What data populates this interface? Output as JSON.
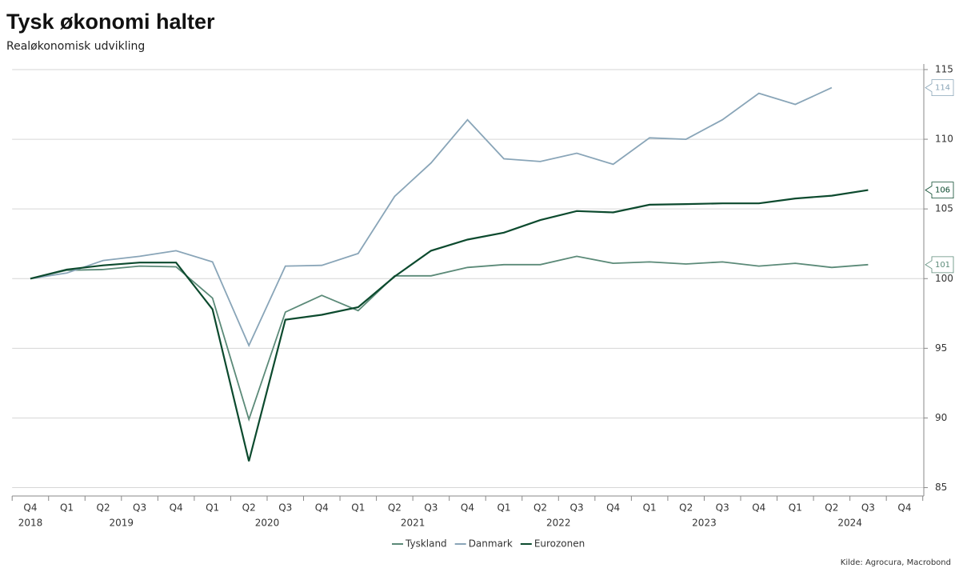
{
  "chart_data": {
    "type": "line",
    "title": "Tysk økonomi halter",
    "subtitle": "Realøkonomisk udvikling",
    "source": "Kilde: Agrocura, Macrobond",
    "categories": [
      "Q4",
      "Q1",
      "Q2",
      "Q3",
      "Q4",
      "Q1",
      "Q2",
      "Q3",
      "Q4",
      "Q1",
      "Q2",
      "Q3",
      "Q4",
      "Q1",
      "Q2",
      "Q3",
      "Q4",
      "Q1",
      "Q2",
      "Q3",
      "Q4",
      "Q1",
      "Q2",
      "Q3",
      "Q4"
    ],
    "years": [
      "2018",
      "2019",
      "2020",
      "2021",
      "2022",
      "2023",
      "2024"
    ],
    "series": [
      {
        "name": "Tyskland",
        "color": "#5b8a78",
        "end_label": "101",
        "values": [
          100,
          100.6,
          100.65,
          100.9,
          100.85,
          98.6,
          89.9,
          97.6,
          98.8,
          97.7,
          100.2,
          100.2,
          100.8,
          101.0,
          101.0,
          101.6,
          101.1,
          101.2,
          101.05,
          101.2,
          100.9,
          101.1,
          100.8,
          101.0,
          null
        ]
      },
      {
        "name": "Danmark",
        "color": "#89a5b8",
        "end_label": "114",
        "values": [
          100,
          100.4,
          101.3,
          101.6,
          102.0,
          101.2,
          95.2,
          100.9,
          100.95,
          101.8,
          105.9,
          108.3,
          111.4,
          108.6,
          108.4,
          109.0,
          108.2,
          110.1,
          110.0,
          111.4,
          113.3,
          112.5,
          113.7,
          null,
          null
        ]
      },
      {
        "name": "Eurozonen",
        "color": "#0c4a2e",
        "end_label": "106",
        "values": [
          100,
          100.65,
          100.95,
          101.15,
          101.15,
          97.8,
          86.9,
          97.05,
          97.4,
          97.95,
          100.15,
          102.0,
          102.8,
          103.3,
          104.2,
          104.85,
          104.75,
          105.3,
          105.35,
          105.4,
          105.4,
          105.75,
          105.95,
          106.35,
          null
        ]
      }
    ],
    "ylim": [
      84.4,
      115.4
    ],
    "yticks": [
      85,
      90,
      95,
      100,
      105,
      110,
      115
    ],
    "grid": true,
    "y_axis_side": "right",
    "legend": "bottom"
  }
}
